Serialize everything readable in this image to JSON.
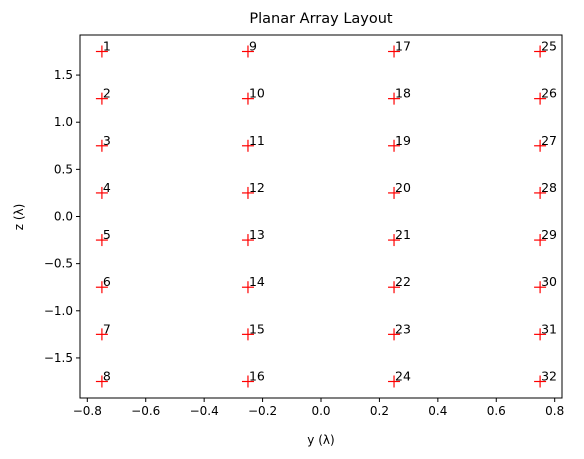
{
  "chart_data": {
    "type": "scatter",
    "title": "Planar Array Layout",
    "xlabel": "y (λ)",
    "ylabel": "z (λ)",
    "xlim": [
      -0.825,
      0.825
    ],
    "ylim": [
      -1.925,
      1.925
    ],
    "x_ticks": [
      -0.8,
      -0.6,
      -0.4,
      -0.2,
      0.0,
      0.2,
      0.4,
      0.6,
      0.8
    ],
    "x_tick_labels": [
      "−0.8",
      "−0.6",
      "−0.4",
      "−0.2",
      "0.0",
      "0.2",
      "0.4",
      "0.6",
      "0.8"
    ],
    "y_ticks": [
      -1.5,
      -1.0,
      -0.5,
      0.0,
      0.5,
      1.0,
      1.5
    ],
    "y_tick_labels": [
      "−1.5",
      "−1.0",
      "−0.5",
      "0.0",
      "0.5",
      "1.0",
      "1.5"
    ],
    "grid": false,
    "marker": "+",
    "marker_color": "#ff0000",
    "points": [
      {
        "label": "1",
        "x": -0.75,
        "y": 1.75
      },
      {
        "label": "2",
        "x": -0.75,
        "y": 1.25
      },
      {
        "label": "3",
        "x": -0.75,
        "y": 0.75
      },
      {
        "label": "4",
        "x": -0.75,
        "y": 0.25
      },
      {
        "label": "5",
        "x": -0.75,
        "y": -0.25
      },
      {
        "label": "6",
        "x": -0.75,
        "y": -0.75
      },
      {
        "label": "7",
        "x": -0.75,
        "y": -1.25
      },
      {
        "label": "8",
        "x": -0.75,
        "y": -1.75
      },
      {
        "label": "9",
        "x": -0.25,
        "y": 1.75
      },
      {
        "label": "10",
        "x": -0.25,
        "y": 1.25
      },
      {
        "label": "11",
        "x": -0.25,
        "y": 0.75
      },
      {
        "label": "12",
        "x": -0.25,
        "y": 0.25
      },
      {
        "label": "13",
        "x": -0.25,
        "y": -0.25
      },
      {
        "label": "14",
        "x": -0.25,
        "y": -0.75
      },
      {
        "label": "15",
        "x": -0.25,
        "y": -1.25
      },
      {
        "label": "16",
        "x": -0.25,
        "y": -1.75
      },
      {
        "label": "17",
        "x": 0.25,
        "y": 1.75
      },
      {
        "label": "18",
        "x": 0.25,
        "y": 1.25
      },
      {
        "label": "19",
        "x": 0.25,
        "y": 0.75
      },
      {
        "label": "20",
        "x": 0.25,
        "y": 0.25
      },
      {
        "label": "21",
        "x": 0.25,
        "y": -0.25
      },
      {
        "label": "22",
        "x": 0.25,
        "y": -0.75
      },
      {
        "label": "23",
        "x": 0.25,
        "y": -1.25
      },
      {
        "label": "24",
        "x": 0.25,
        "y": -1.75
      },
      {
        "label": "25",
        "x": 0.75,
        "y": 1.75
      },
      {
        "label": "26",
        "x": 0.75,
        "y": 1.25
      },
      {
        "label": "27",
        "x": 0.75,
        "y": 0.75
      },
      {
        "label": "28",
        "x": 0.75,
        "y": 0.25
      },
      {
        "label": "29",
        "x": 0.75,
        "y": -0.25
      },
      {
        "label": "30",
        "x": 0.75,
        "y": -0.75
      },
      {
        "label": "31",
        "x": 0.75,
        "y": -1.25
      },
      {
        "label": "32",
        "x": 0.75,
        "y": -1.75
      }
    ]
  }
}
